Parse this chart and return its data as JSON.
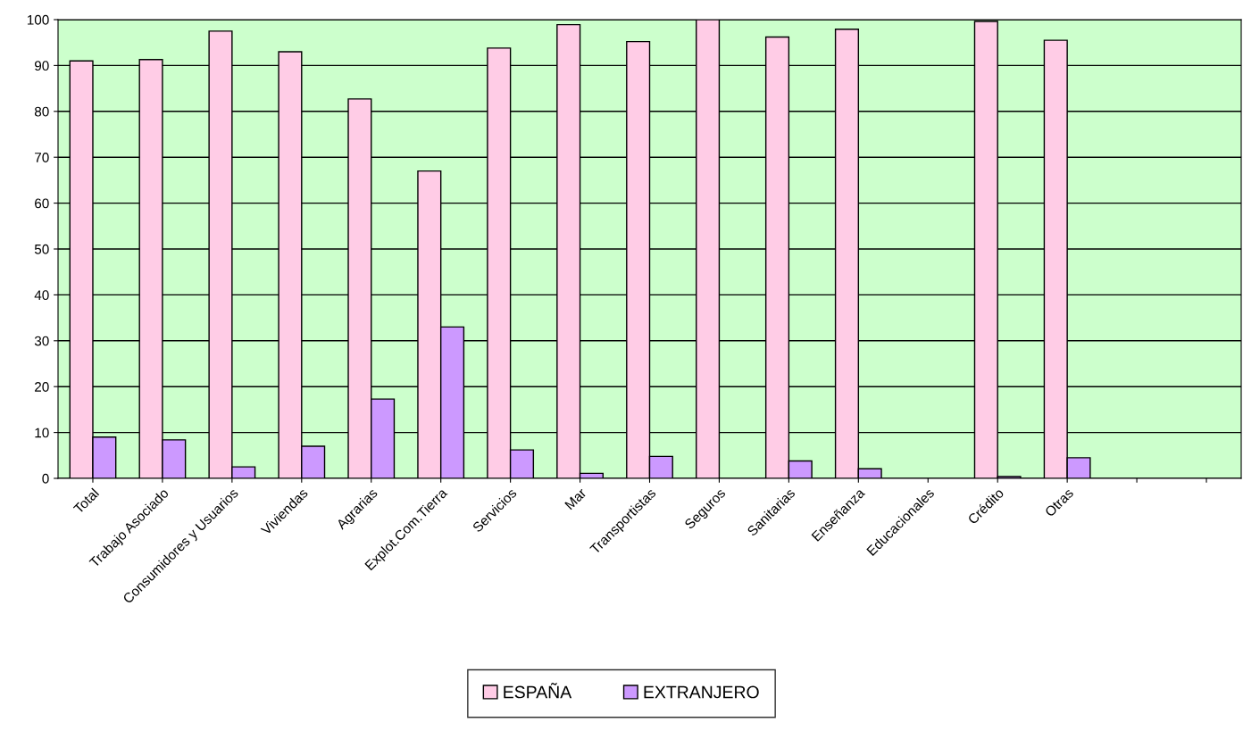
{
  "chart_data": {
    "type": "bar",
    "categories": [
      "Total",
      "Trabajo Asociado",
      "Consumidores y Usuarios",
      "Viviendas",
      "Agrarias",
      "Explot.Com.Tierra",
      "Servicios",
      "Mar",
      "Transportistas",
      "Seguros",
      "Sanitarias",
      "Enseñanza",
      "Educacionales",
      "Crédito",
      "Otras",
      null,
      null
    ],
    "series": [
      {
        "name": "ESPAÑA",
        "color": "#ffcce6",
        "values": [
          91,
          91.3,
          97.5,
          93,
          82.7,
          67,
          93.8,
          98.9,
          95.2,
          100,
          96.2,
          97.9,
          null,
          99.6,
          95.5,
          null,
          null
        ]
      },
      {
        "name": "EXTRANJERO",
        "color": "#cc99ff",
        "values": [
          9,
          8.4,
          2.5,
          7,
          17.3,
          33,
          6.2,
          1.1,
          4.8,
          null,
          3.8,
          2.1,
          null,
          0.4,
          4.5,
          null,
          null
        ]
      }
    ],
    "ylim": [
      0,
      100
    ],
    "yticks": [
      0,
      10,
      20,
      30,
      40,
      50,
      60,
      70,
      80,
      90,
      100
    ],
    "grid": "y",
    "legend": "bottom"
  }
}
